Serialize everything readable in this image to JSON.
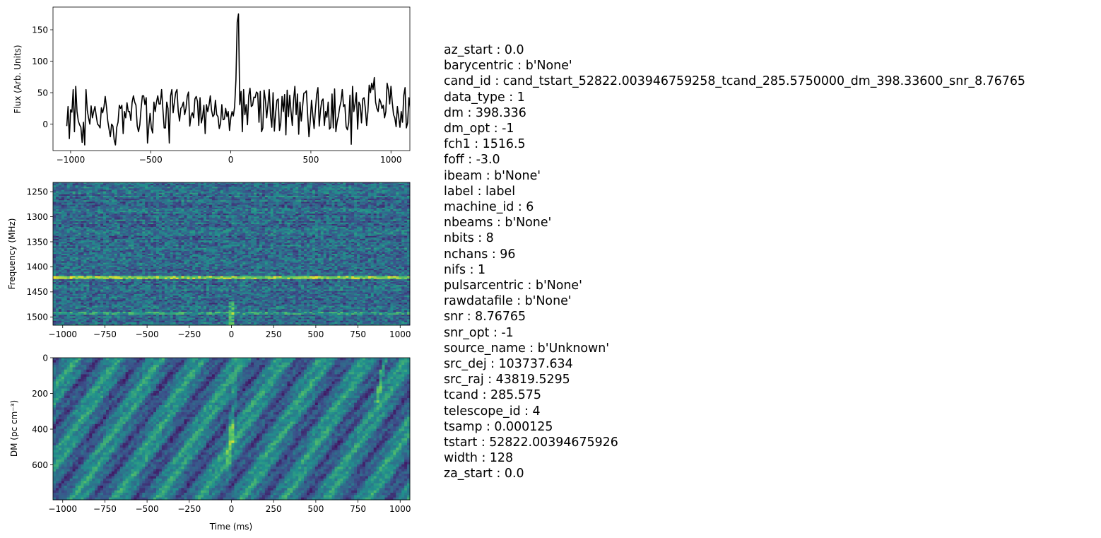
{
  "chart_data": [
    {
      "type": "line",
      "panel": "profile",
      "ylabel": "Flux (Arb. Units)",
      "xlim": [
        -1110,
        1118
      ],
      "ylim": [
        -42,
        186
      ],
      "xticks": [
        -1000,
        -500,
        0,
        500,
        1000
      ],
      "xtick_labels": [
        "−1000",
        "−500",
        "0",
        "500",
        "1000"
      ],
      "yticks": [
        0,
        50,
        100,
        150
      ],
      "ytick_labels": [
        "0",
        "50",
        "100",
        "150"
      ],
      "color": "#000000",
      "x_start": -1024,
      "x_step": 8,
      "y": [
        -3,
        28,
        -23,
        23,
        19,
        55,
        -12,
        60,
        20,
        5,
        -1,
        -5,
        -29,
        3,
        -33,
        55,
        22,
        10,
        0,
        29,
        10,
        20,
        28,
        13,
        0,
        -2,
        -6,
        26,
        18,
        27,
        44,
        27,
        5,
        -8,
        -20,
        0,
        -3,
        -25,
        -33,
        -5,
        3,
        30,
        25,
        30,
        -15,
        20,
        10,
        34,
        20,
        20,
        6,
        35,
        45,
        35,
        30,
        -3,
        -12,
        -1,
        25,
        45,
        45,
        31,
        42,
        -30,
        -4,
        17,
        -6,
        -14,
        35,
        20,
        35,
        45,
        32,
        32,
        55,
        24,
        -6,
        -6,
        35,
        25,
        -30,
        45,
        55,
        18,
        35,
        50,
        55,
        20,
        5,
        25,
        28,
        35,
        15,
        25,
        44,
        51,
        -3,
        13,
        18,
        10,
        40,
        44,
        36,
        -2,
        42,
        2,
        12,
        30,
        -15,
        31,
        20,
        30,
        45,
        22,
        12,
        15,
        38,
        15,
        12,
        -7,
        1,
        31,
        7,
        8,
        25,
        12,
        20,
        -10,
        10,
        20,
        13,
        28,
        70,
        162,
        175,
        31,
        52,
        -12,
        55,
        15,
        31,
        -1,
        45,
        57,
        28,
        30,
        43,
        42,
        51,
        49,
        3,
        52,
        -12,
        -6,
        54,
        38,
        10,
        31,
        55,
        14,
        -5,
        50,
        -11,
        18,
        38,
        40,
        -10,
        2,
        44,
        20,
        47,
        -17,
        54,
        12,
        46,
        20,
        -2,
        38,
        60,
        15,
        48,
        -16,
        35,
        5,
        27,
        49,
        50,
        53,
        14,
        -20,
        5,
        38,
        15,
        -7,
        22,
        47,
        58,
        -3,
        22,
        37,
        40,
        -2,
        20,
        11,
        35,
        -8,
        -5,
        48,
        -6,
        56,
        -12,
        4,
        13,
        27,
        36,
        55,
        28,
        31,
        -4,
        -9,
        2,
        46,
        -32,
        60,
        20,
        33,
        50,
        -8,
        35,
        30,
        2,
        40,
        42,
        25,
        -2,
        20,
        62,
        50,
        65,
        55,
        74,
        35,
        25,
        20,
        40,
        35,
        25,
        30,
        10,
        20,
        65,
        55,
        32,
        60,
        35,
        15,
        10,
        -4,
        28,
        12,
        -5,
        20,
        3,
        46,
        58,
        -6,
        2,
        42,
        25,
        45,
        41,
        -3,
        30,
        5,
        40,
        18,
        22,
        10,
        -8,
        -2,
        10,
        -12,
        33,
        7,
        18,
        -15,
        -5,
        25,
        17,
        28,
        -25,
        -1,
        19,
        0,
        23,
        -10,
        5,
        15,
        -8,
        2,
        -10
      ],
      "note": "dense noisy time series; values read approximately off the plot"
    },
    {
      "type": "heatmap",
      "panel": "frequency-time",
      "ylabel": "Frequency (MHz)",
      "xlim": [
        -1024,
        1024
      ],
      "ylim": [
        1516.5,
        1231.5
      ],
      "xticks": [
        -1000,
        -750,
        -500,
        -250,
        0,
        250,
        500,
        750,
        1000
      ],
      "xtick_labels": [
        "−1000",
        "−750",
        "−500",
        "−250",
        "0",
        "250",
        "500",
        "750",
        "1000"
      ],
      "yticks": [
        1250,
        1300,
        1350,
        1400,
        1450,
        1500
      ],
      "ytick_labels": [
        "1250",
        "1300",
        "1350",
        "1400",
        "1450",
        "1500"
      ],
      "colormap": "viridis",
      "features": {
        "bright_band_MHz": 1422,
        "secondary_band_MHz": 1492,
        "pulse_time_ms": 0
      }
    },
    {
      "type": "heatmap",
      "panel": "dm-time",
      "xlabel": "Time (ms)",
      "ylabel": "DM (pc cm⁻³)",
      "xlim": [
        -1024,
        1024
      ],
      "ylim": [
        796,
        0
      ],
      "xticks": [
        -1000,
        -750,
        -500,
        -250,
        0,
        250,
        500,
        750,
        1000
      ],
      "xtick_labels": [
        "−1000",
        "−750",
        "−500",
        "−250",
        "0",
        "250",
        "500",
        "750",
        "1000"
      ],
      "yticks": [
        0,
        200,
        400,
        600
      ],
      "ytick_labels": [
        "0",
        "200",
        "400",
        "600"
      ],
      "colormap": "viridis",
      "features": {
        "peak_dm": 398.336,
        "peak_time_ms": 0
      }
    }
  ],
  "parameters": [
    "az_start : 0.0",
    "barycentric : b'None'",
    "cand_id : cand_tstart_52822.003946759258_tcand_285.5750000_dm_398.33600_snr_8.76765",
    "data_type : 1",
    "dm : 398.336",
    "dm_opt : -1",
    "fch1 : 1516.5",
    "foff : -3.0",
    "ibeam : b'None'",
    "label : label",
    "machine_id : 6",
    "nbeams : b'None'",
    "nbits : 8",
    "nchans : 96",
    "nifs : 1",
    "pulsarcentric : b'None'",
    "rawdatafile : b'None'",
    "snr : 8.76765",
    "snr_opt : -1",
    "source_name : b'Unknown'",
    "src_dej : 103737.634",
    "src_raj : 43819.5295",
    "tcand : 285.575",
    "telescope_id : 4",
    "tsamp : 0.000125",
    "tstart : 52822.00394675926",
    "width : 128",
    "za_start : 0.0"
  ]
}
